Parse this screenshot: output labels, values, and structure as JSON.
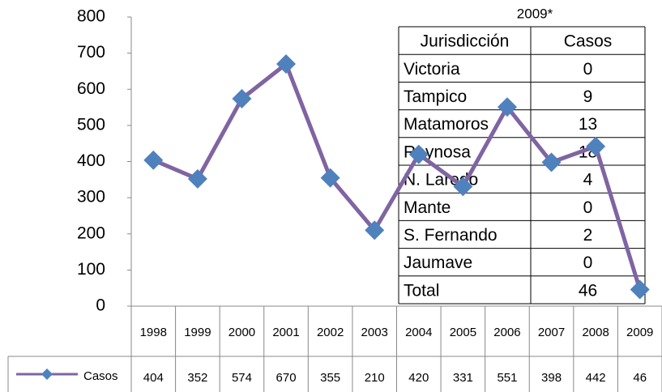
{
  "chart_data": {
    "type": "line",
    "categories": [
      "1998",
      "1999",
      "2000",
      "2001",
      "2002",
      "2003",
      "2004",
      "2005",
      "2006",
      "2007",
      "2008",
      "2009"
    ],
    "series": [
      {
        "name": "Casos",
        "color": "#8064a2",
        "marker_color": "#4f81bd",
        "values": [
          404,
          352,
          574,
          670,
          355,
          210,
          420,
          331,
          551,
          398,
          442,
          46
        ]
      }
    ],
    "ylim": [
      0,
      800
    ],
    "yticks": [
      0,
      100,
      200,
      300,
      400,
      500,
      600,
      700,
      800
    ],
    "grid": false,
    "inset_table": {
      "title": "2009*",
      "header": [
        "Jurisdicción",
        "Casos"
      ],
      "rows": [
        [
          "Victoria",
          0
        ],
        [
          "Tampico",
          9
        ],
        [
          "Matamoros",
          13
        ],
        [
          "Reynosa",
          18
        ],
        [
          "N. Laredo",
          4
        ],
        [
          "Mante",
          0
        ],
        [
          "S. Fernando",
          2
        ],
        [
          "Jaumave",
          0
        ],
        [
          "Total",
          46
        ]
      ]
    }
  }
}
